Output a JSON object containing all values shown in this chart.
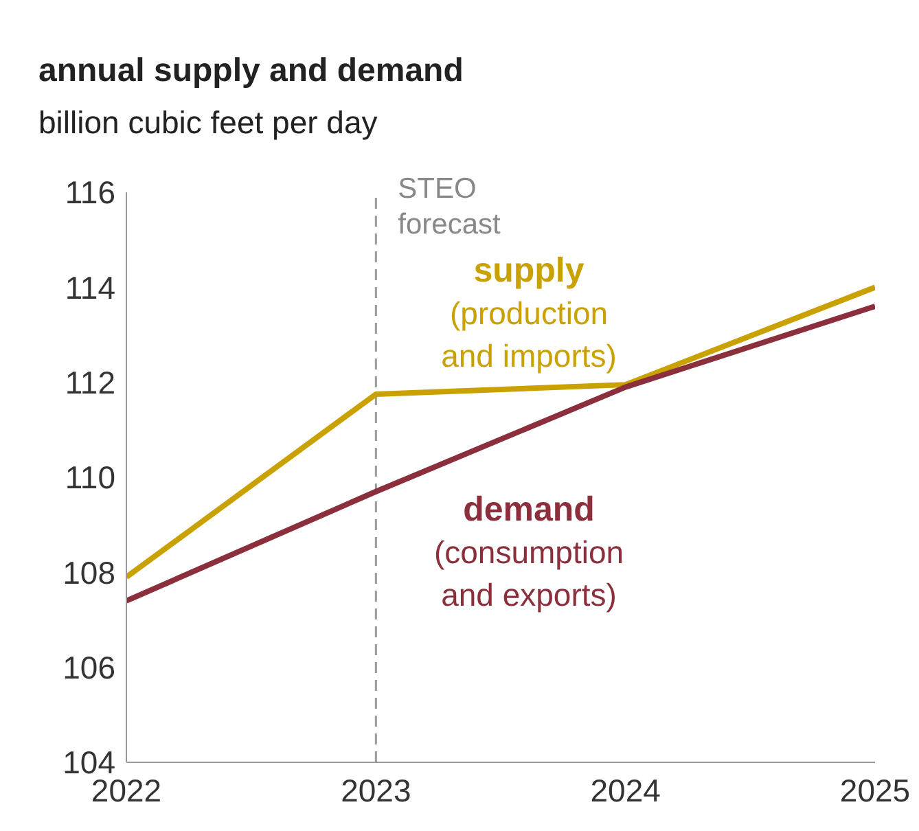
{
  "chart_data": {
    "type": "line",
    "title": "annual supply and demand",
    "subtitle": "billion cubic feet per day",
    "x": [
      2022,
      2023,
      2024,
      2025
    ],
    "series": [
      {
        "name": "supply (production and imports)",
        "color": "#c9a100",
        "values": [
          107.9,
          111.75,
          111.95,
          114.0
        ]
      },
      {
        "name": "demand (consumption and exports)",
        "color": "#8b2f3c",
        "values": [
          107.4,
          109.7,
          111.9,
          113.6
        ]
      }
    ],
    "xlim": [
      2022,
      2025
    ],
    "xticks": [
      2022,
      2023,
      2024,
      2025
    ],
    "ylim": [
      104,
      116
    ],
    "yticks": [
      104,
      106,
      108,
      110,
      112,
      114,
      116
    ],
    "ref_lines": [
      {
        "axis": "x",
        "value": 2023,
        "label": "STEO forecast",
        "color": "#9a9a9a",
        "line_style": "dashed"
      }
    ],
    "grid": false,
    "legend": false
  }
}
